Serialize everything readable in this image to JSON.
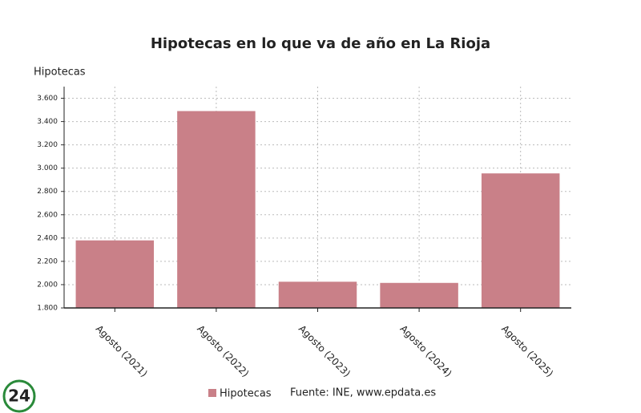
{
  "chart_data": {
    "type": "bar",
    "title": "Hipotecas en lo que va de año en La Rioja",
    "y_label": "Hipotecas",
    "categories": [
      "Agosto (2021)",
      "Agosto (2022)",
      "Agosto (2023)",
      "Agosto (2024)",
      "Agosto (2025)"
    ],
    "series": [
      {
        "name": "Hipotecas",
        "color": "#c98088",
        "values": [
          2380,
          3490,
          2025,
          2015,
          2955
        ]
      }
    ],
    "ylim": [
      1800,
      3700
    ],
    "yticks": [
      {
        "value": 1800,
        "label": "1.800"
      },
      {
        "value": 2000,
        "label": "2.000"
      },
      {
        "value": 2200,
        "label": "2.200"
      },
      {
        "value": 2400,
        "label": "2.400"
      },
      {
        "value": 2600,
        "label": "2.600"
      },
      {
        "value": 2800,
        "label": "2.800"
      },
      {
        "value": 3000,
        "label": "3.000"
      },
      {
        "value": 3200,
        "label": "3.200"
      },
      {
        "value": 3400,
        "label": "3.400"
      },
      {
        "value": 3600,
        "label": "3.600"
      }
    ],
    "grid": true,
    "legend": "bottom",
    "source": "Fuente: INE, www.epdata.es"
  },
  "logo": "24"
}
